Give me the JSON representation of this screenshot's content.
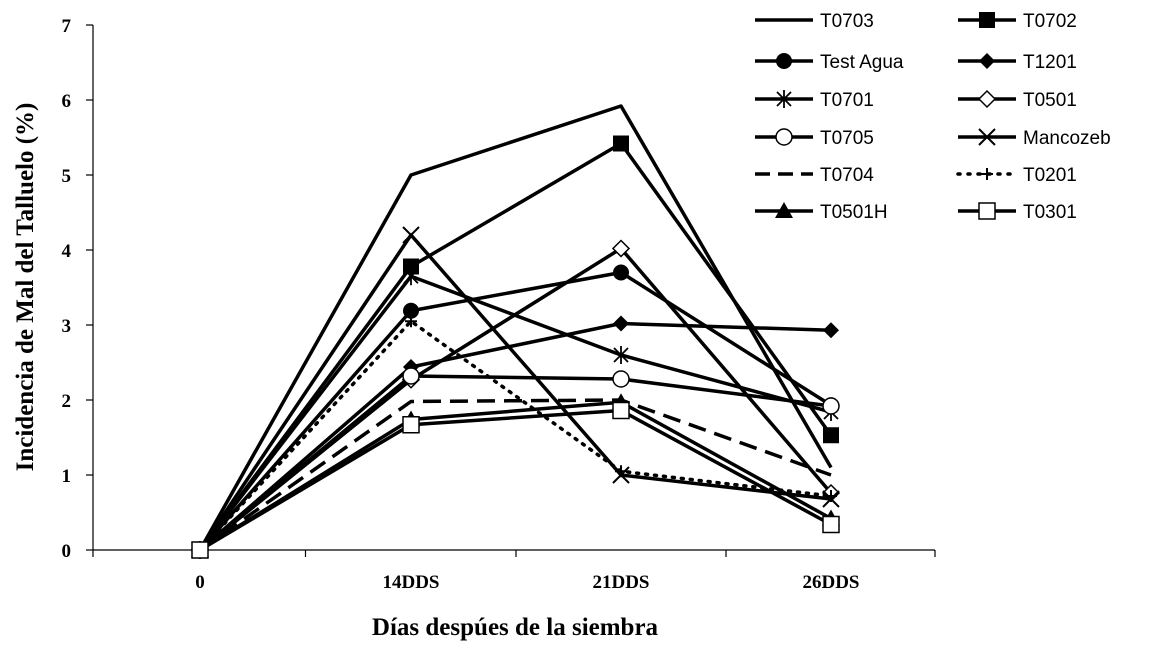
{
  "chart_data": {
    "type": "line",
    "title": "",
    "xlabel": "Días despúes de la siembra",
    "ylabel": "Incidencia de Mal del Talluelo (%)",
    "categories": [
      "0",
      "14DDS",
      "21DDS",
      "26DDS"
    ],
    "ylim": [
      0,
      7
    ],
    "yticks": [
      "0",
      "1",
      "2",
      "3",
      "4",
      "5",
      "6",
      "7"
    ],
    "grid": false,
    "legend": "top-right",
    "series": [
      {
        "name": "T0703",
        "marker": "none",
        "dash": "solid",
        "values": [
          0,
          5.0,
          5.92,
          1.1
        ]
      },
      {
        "name": "T0702",
        "marker": "square-filled",
        "dash": "solid",
        "values": [
          0,
          3.78,
          5.42,
          1.53
        ]
      },
      {
        "name": "Test Agua",
        "marker": "circle-filled",
        "dash": "solid",
        "values": [
          0,
          3.19,
          3.7,
          1.93
        ]
      },
      {
        "name": "T1201",
        "marker": "diamond-filled",
        "dash": "solid",
        "values": [
          0,
          2.44,
          3.02,
          2.93
        ]
      },
      {
        "name": "T0701",
        "marker": "asterisk",
        "dash": "solid",
        "values": [
          0,
          3.65,
          2.6,
          1.84
        ]
      },
      {
        "name": "T0501",
        "marker": "diamond-open",
        "dash": "solid",
        "values": [
          0,
          2.27,
          4.02,
          0.76
        ]
      },
      {
        "name": "T0705",
        "marker": "circle-open",
        "dash": "solid",
        "values": [
          0,
          2.32,
          2.28,
          1.92
        ]
      },
      {
        "name": "Mancozeb",
        "marker": "x",
        "dash": "solid",
        "values": [
          0,
          4.2,
          1.0,
          0.68
        ]
      },
      {
        "name": "T0704",
        "marker": "none",
        "dash": "dashed",
        "values": [
          0,
          1.98,
          2.0,
          1.0
        ]
      },
      {
        "name": "T0201",
        "marker": "plus",
        "dash": "dotted",
        "values": [
          0,
          3.05,
          1.05,
          0.72
        ]
      },
      {
        "name": "T0501H",
        "marker": "triangle-filled",
        "dash": "solid",
        "values": [
          0,
          1.74,
          1.97,
          0.42
        ]
      },
      {
        "name": "T0301",
        "marker": "square-open",
        "dash": "solid",
        "values": [
          0,
          1.67,
          1.86,
          0.34
        ]
      }
    ]
  }
}
